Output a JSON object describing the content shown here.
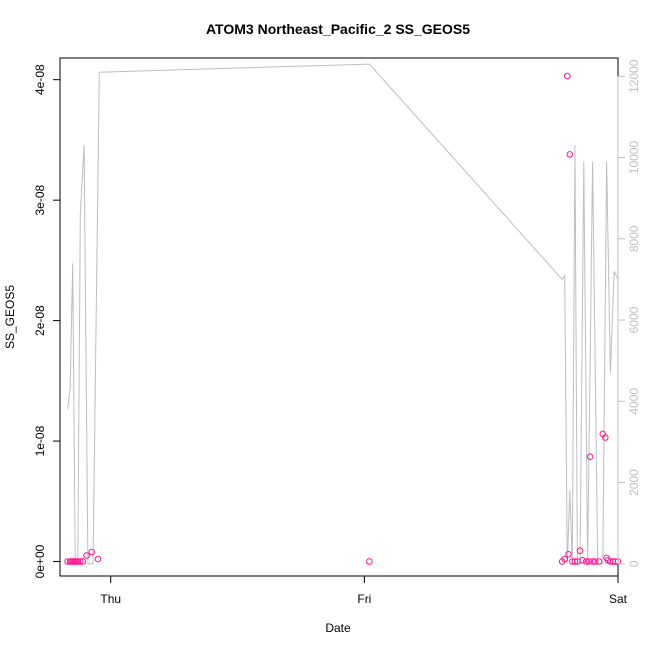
{
  "chart_data": {
    "type": "scatter",
    "title": "ATOM3 Northeast_Pacific_2 SS_GEOS5",
    "xlabel": "Date",
    "ylabel": "SS_GEOS5",
    "x_ticks": [
      "Thu",
      "Fri",
      "Sat"
    ],
    "x_range_days": [
      -0.2,
      2.0
    ],
    "ylim": [
      -1.2e-09,
      4.18e-08
    ],
    "y_ticks": [
      "0e+00",
      "1e-08",
      "2e-08",
      "3e-08",
      "4e-08"
    ],
    "y_right_lim": [
      -300,
      12450
    ],
    "y_right_ticks": [
      "0",
      "2000",
      "4000",
      "6000",
      "8000",
      "10000",
      "12000"
    ],
    "grid": false,
    "series": [
      {
        "kind": "points",
        "axis": "left",
        "color": "#ff1493",
        "x": [
          -0.17,
          -0.16,
          -0.155,
          -0.15,
          -0.145,
          -0.14,
          -0.135,
          -0.13,
          -0.12,
          -0.11,
          -0.095,
          -0.075,
          -0.05,
          1.02,
          1.78,
          1.79,
          1.8,
          1.805,
          1.81,
          1.82,
          1.83,
          1.84,
          1.85,
          1.86,
          1.875,
          1.885,
          1.89,
          1.9,
          1.91,
          1.925,
          1.94,
          1.95,
          1.955,
          1.96,
          1.97,
          1.98,
          1.99,
          2.0
        ],
        "y": [
          0,
          0,
          0,
          0,
          0,
          0,
          0,
          0,
          0,
          0,
          5e-10,
          8e-10,
          2e-10,
          0,
          0,
          2e-10,
          4.03e-08,
          6e-10,
          3.38e-08,
          0,
          0,
          0,
          9e-10,
          1e-10,
          0,
          0,
          8.7e-09,
          0,
          0,
          0,
          1.06e-08,
          1.03e-08,
          3e-10,
          1e-10,
          0,
          0,
          0,
          0
        ]
      },
      {
        "kind": "line",
        "axis": "right",
        "color": "#bebebe",
        "x": [
          -0.17,
          -0.16,
          -0.15,
          -0.14,
          -0.13,
          -0.12,
          -0.105,
          -0.09,
          -0.07,
          -0.045,
          1.02,
          1.78,
          1.79,
          1.8,
          1.81,
          1.82,
          1.83,
          1.84,
          1.85,
          1.865,
          1.88,
          1.9,
          1.92,
          1.94,
          1.955,
          1.97,
          1.985,
          2.0
        ],
        "y": [
          3800,
          4300,
          7400,
          0,
          0,
          8600,
          10300,
          0,
          0,
          12100,
          12300,
          7000,
          7100,
          0,
          1800,
          0,
          10300,
          0,
          0,
          9900,
          0,
          9900,
          0,
          0,
          9900,
          4700,
          7200,
          7000
        ]
      }
    ]
  }
}
